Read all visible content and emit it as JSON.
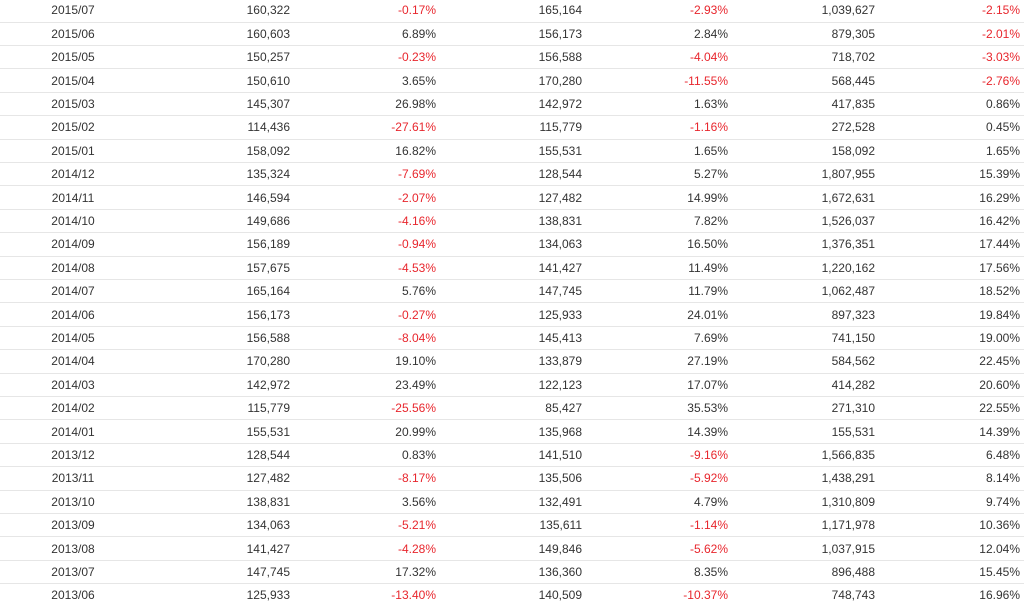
{
  "table": {
    "rows": [
      [
        "2015/07",
        "160,322",
        "-0.17%",
        "165,164",
        "-2.93%",
        "1,039,627",
        "-2.15%"
      ],
      [
        "2015/06",
        "160,603",
        "6.89%",
        "156,173",
        "2.84%",
        "879,305",
        "-2.01%"
      ],
      [
        "2015/05",
        "150,257",
        "-0.23%",
        "156,588",
        "-4.04%",
        "718,702",
        "-3.03%"
      ],
      [
        "2015/04",
        "150,610",
        "3.65%",
        "170,280",
        "-11.55%",
        "568,445",
        "-2.76%"
      ],
      [
        "2015/03",
        "145,307",
        "26.98%",
        "142,972",
        "1.63%",
        "417,835",
        "0.86%"
      ],
      [
        "2015/02",
        "114,436",
        "-27.61%",
        "115,779",
        "-1.16%",
        "272,528",
        "0.45%"
      ],
      [
        "2015/01",
        "158,092",
        "16.82%",
        "155,531",
        "1.65%",
        "158,092",
        "1.65%"
      ],
      [
        "2014/12",
        "135,324",
        "-7.69%",
        "128,544",
        "5.27%",
        "1,807,955",
        "15.39%"
      ],
      [
        "2014/11",
        "146,594",
        "-2.07%",
        "127,482",
        "14.99%",
        "1,672,631",
        "16.29%"
      ],
      [
        "2014/10",
        "149,686",
        "-4.16%",
        "138,831",
        "7.82%",
        "1,526,037",
        "16.42%"
      ],
      [
        "2014/09",
        "156,189",
        "-0.94%",
        "134,063",
        "16.50%",
        "1,376,351",
        "17.44%"
      ],
      [
        "2014/08",
        "157,675",
        "-4.53%",
        "141,427",
        "11.49%",
        "1,220,162",
        "17.56%"
      ],
      [
        "2014/07",
        "165,164",
        "5.76%",
        "147,745",
        "11.79%",
        "1,062,487",
        "18.52%"
      ],
      [
        "2014/06",
        "156,173",
        "-0.27%",
        "125,933",
        "24.01%",
        "897,323",
        "19.84%"
      ],
      [
        "2014/05",
        "156,588",
        "-8.04%",
        "145,413",
        "7.69%",
        "741,150",
        "19.00%"
      ],
      [
        "2014/04",
        "170,280",
        "19.10%",
        "133,879",
        "27.19%",
        "584,562",
        "22.45%"
      ],
      [
        "2014/03",
        "142,972",
        "23.49%",
        "122,123",
        "17.07%",
        "414,282",
        "20.60%"
      ],
      [
        "2014/02",
        "115,779",
        "-25.56%",
        "85,427",
        "35.53%",
        "271,310",
        "22.55%"
      ],
      [
        "2014/01",
        "155,531",
        "20.99%",
        "135,968",
        "14.39%",
        "155,531",
        "14.39%"
      ],
      [
        "2013/12",
        "128,544",
        "0.83%",
        "141,510",
        "-9.16%",
        "1,566,835",
        "6.48%"
      ],
      [
        "2013/11",
        "127,482",
        "-8.17%",
        "135,506",
        "-5.92%",
        "1,438,291",
        "8.14%"
      ],
      [
        "2013/10",
        "138,831",
        "3.56%",
        "132,491",
        "4.79%",
        "1,310,809",
        "9.74%"
      ],
      [
        "2013/09",
        "134,063",
        "-5.21%",
        "135,611",
        "-1.14%",
        "1,171,978",
        "10.36%"
      ],
      [
        "2013/08",
        "141,427",
        "-4.28%",
        "149,846",
        "-5.62%",
        "1,037,915",
        "12.04%"
      ],
      [
        "2013/07",
        "147,745",
        "17.32%",
        "136,360",
        "8.35%",
        "896,488",
        "15.45%"
      ],
      [
        "2013/06",
        "125,933",
        "-13.40%",
        "140,509",
        "-10.37%",
        "748,743",
        "16.96%"
      ]
    ]
  }
}
